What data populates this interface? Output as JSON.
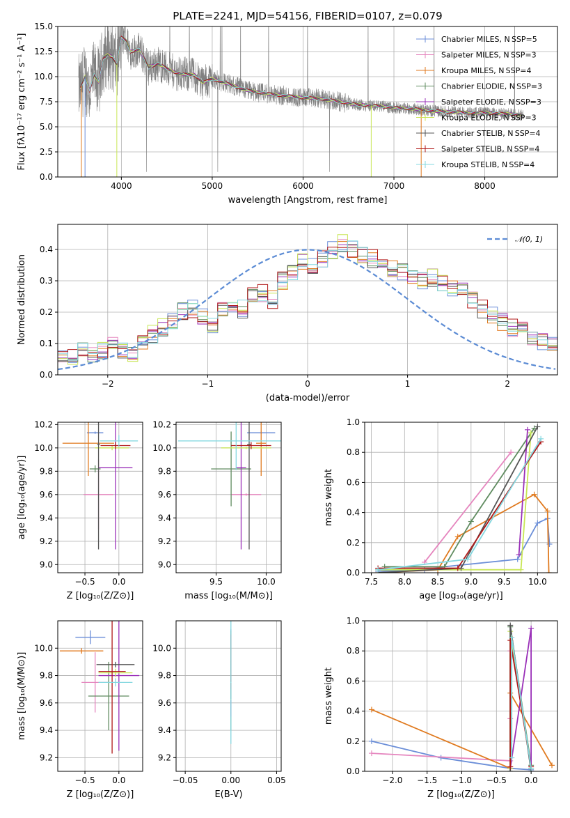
{
  "title": "PLATE=2241, MJD=54156, FIBERID=0107, z=0.079",
  "colors": {
    "spectrum": "#808080",
    "normal_curve": "#5b8bd4",
    "grid": "#b0b0b0",
    "series": [
      "#6b8ed8",
      "#e585be",
      "#e07a1f",
      "#5f8b5f",
      "#9a30b8",
      "#c8e655",
      "#555555",
      "#b01818",
      "#84d8e0"
    ]
  },
  "series_labels": [
    "Chabrier MILES, N SSP=5",
    "Salpeter MILES, N SSP=3",
    "Kroupa MILES, N SSP=4",
    "Chabrier ELODIE, N SSP=3",
    "Salpeter ELODIE, N SSP=3",
    "Kroupa ELODIE, N SSP=3",
    "Chabrier STELIB, N SSP=4",
    "Salpeter STELIB, N SSP=4",
    "Kroupa STELIB, N SSP=4"
  ],
  "chart_data": [
    {
      "id": "spectrum",
      "type": "line",
      "title": "PLATE=2241, MJD=54156, FIBERID=0107, z=0.079",
      "xlabel": "wavelength [Angstrom, rest frame]",
      "ylabel": "Flux [fλ10⁻¹⁷ erg cm⁻² s⁻¹ A⁻¹]",
      "xlim": [
        3300,
        8800
      ],
      "ylim": [
        0,
        15
      ],
      "xticks": [
        4000,
        5000,
        6000,
        7000,
        8000
      ],
      "yticks": [
        0.0,
        2.5,
        5.0,
        7.5,
        10.0,
        12.5,
        15.0
      ],
      "legend": "right",
      "model_continuum": {
        "x": [
          3550,
          3600,
          3650,
          3700,
          3750,
          3800,
          3850,
          3900,
          3950,
          4000,
          4050,
          4100,
          4200,
          4300,
          4400,
          4500,
          4600,
          4700,
          4800,
          4900,
          5000,
          5200,
          5400,
          5600,
          5800,
          6000,
          6200,
          6400,
          6600,
          6800,
          7000,
          7200,
          7400,
          7600,
          7800,
          8000,
          8200,
          8400
        ],
        "y": [
          8.8,
          10.0,
          8.6,
          10.2,
          9.5,
          11.8,
          12.2,
          12.0,
          11.2,
          13.9,
          13.6,
          12.5,
          12.7,
          10.9,
          11.3,
          10.8,
          10.4,
          10.2,
          10.2,
          9.4,
          9.8,
          9.2,
          8.6,
          8.3,
          8.1,
          7.9,
          7.8,
          7.5,
          7.2,
          7.1,
          6.9,
          6.8,
          6.6,
          6.5,
          6.4,
          6.4,
          6.3,
          6.2
        ]
      }
    },
    {
      "id": "residuals",
      "type": "histogram",
      "xlabel": "(data-model)/error",
      "ylabel": "Normed distribution",
      "xlim": [
        -2.5,
        2.5
      ],
      "ylim": [
        0,
        0.48
      ],
      "xticks": [
        -2,
        -1,
        0,
        1,
        2
      ],
      "yticks": [
        0.0,
        0.1,
        0.2,
        0.3,
        0.4
      ],
      "normal_label": "𝒩(0, 1)",
      "legend": "top-right",
      "bins": {
        "start": -2.5,
        "width": 0.1
      },
      "hist_envelope": [
        0.05,
        0.06,
        0.08,
        0.07,
        0.08,
        0.09,
        0.08,
        0.07,
        0.1,
        0.13,
        0.15,
        0.17,
        0.2,
        0.21,
        0.19,
        0.16,
        0.21,
        0.23,
        0.21,
        0.25,
        0.26,
        0.24,
        0.3,
        0.32,
        0.36,
        0.35,
        0.37,
        0.4,
        0.42,
        0.4,
        0.38,
        0.37,
        0.35,
        0.34,
        0.33,
        0.31,
        0.3,
        0.31,
        0.29,
        0.28,
        0.27,
        0.24,
        0.21,
        0.19,
        0.17,
        0.15,
        0.14,
        0.12,
        0.11,
        0.1
      ]
    },
    {
      "id": "age-vs-Z",
      "type": "scatter",
      "xlabel": "Z [log₁₀(Z/Z⊙)]",
      "ylabel": "age  [log₁₀(age/yr)]",
      "xlim": [
        -0.9,
        0.35
      ],
      "ylim": [
        8.93,
        10.22
      ],
      "xticks": [
        -0.5,
        0.0
      ],
      "yticks": [
        9.0,
        9.2,
        9.4,
        9.6,
        9.8,
        10.0,
        10.2
      ],
      "points": [
        {
          "s": 0,
          "x": -0.35,
          "y": 10.13,
          "xerr": 0.12,
          "yerr": 0.01
        },
        {
          "s": 1,
          "x": -0.3,
          "y": 9.6,
          "xerr": 0.22,
          "yerr": 0.3
        },
        {
          "s": 2,
          "x": -0.45,
          "y": 10.04,
          "xerr": 0.38,
          "yerr": 0.28
        },
        {
          "s": 3,
          "x": -0.35,
          "y": 9.82,
          "xerr": 0.08,
          "yerr": 0.03
        },
        {
          "s": 4,
          "x": -0.05,
          "y": 9.83,
          "xerr": 0.25,
          "yerr": 0.7
        },
        {
          "s": 5,
          "x": -0.1,
          "y": 10.0,
          "xerr": 0.25,
          "yerr": 0.02
        },
        {
          "s": 6,
          "x": -0.3,
          "y": 10.03,
          "xerr": 0.02,
          "yerr": 0.9
        },
        {
          "s": 7,
          "x": -0.05,
          "y": 10.02,
          "xerr": 0.22,
          "yerr": 0.03
        },
        {
          "s": 8,
          "x": 0.0,
          "y": 10.06,
          "xerr": 0.28,
          "yerr": 0.05
        }
      ]
    },
    {
      "id": "age-vs-mass",
      "type": "scatter",
      "xlabel": "mass [log₁₀(M/M⊙)]",
      "ylabel": "",
      "xlim": [
        9.1,
        10.15
      ],
      "ylim": [
        8.93,
        10.22
      ],
      "xticks": [
        9.5,
        10.0
      ],
      "yticks": [
        9.0,
        9.2,
        9.4,
        9.6,
        9.8,
        10.0,
        10.2
      ],
      "points": [
        {
          "s": 0,
          "x": 9.95,
          "y": 10.13,
          "xerr": 0.14,
          "yerr": 0.01
        },
        {
          "s": 1,
          "x": 9.8,
          "y": 9.6,
          "xerr": 0.15,
          "yerr": 0.01
        },
        {
          "s": 2,
          "x": 9.95,
          "y": 10.04,
          "xerr": 0.05,
          "yerr": 0.28
        },
        {
          "s": 3,
          "x": 9.65,
          "y": 9.82,
          "xerr": 0.2,
          "yerr": 0.32
        },
        {
          "s": 4,
          "x": 9.75,
          "y": 9.83,
          "xerr": 0.05,
          "yerr": 0.7
        },
        {
          "s": 5,
          "x": 9.8,
          "y": 10.0,
          "xerr": 0.25,
          "yerr": 0.01
        },
        {
          "s": 6,
          "x": 9.83,
          "y": 10.03,
          "xerr": 0.02,
          "yerr": 0.9
        },
        {
          "s": 7,
          "x": 9.85,
          "y": 10.02,
          "xerr": 0.2,
          "yerr": 0.03
        },
        {
          "s": 8,
          "x": 9.7,
          "y": 10.06,
          "xerr": 0.58,
          "yerr": 0.25
        }
      ]
    },
    {
      "id": "weight-vs-age",
      "type": "line",
      "xlabel": "age  [log₁₀(age/yr)]",
      "ylabel": "mass weight",
      "xlim": [
        7.4,
        10.3
      ],
      "ylim": [
        0,
        1.0
      ],
      "xticks": [
        7.5,
        8.0,
        8.5,
        9.0,
        9.5,
        10.0
      ],
      "yticks": [
        0.0,
        0.2,
        0.4,
        0.6,
        0.8,
        1.0
      ],
      "series": [
        {
          "s": 0,
          "x": [
            7.6,
            8.3,
            8.6,
            9.7,
            10.0,
            10.15,
            10.18
          ],
          "y": [
            0.01,
            0.02,
            0.04,
            0.09,
            0.33,
            0.36,
            0.19
          ]
        },
        {
          "s": 1,
          "x": [
            8.3,
            9.6
          ],
          "y": [
            0.07,
            0.8
          ]
        },
        {
          "s": 2,
          "x": [
            7.6,
            8.5,
            8.8,
            9.95,
            10.15,
            10.17
          ],
          "y": [
            0.0,
            0.02,
            0.24,
            0.52,
            0.41,
            0.0
          ]
        },
        {
          "s": 3,
          "x": [
            7.7,
            8.6,
            9.0,
            9.95
          ],
          "y": [
            0.04,
            0.04,
            0.34,
            0.96
          ]
        },
        {
          "s": 4,
          "x": [
            9.72,
            9.85
          ],
          "y": [
            0.12,
            0.95
          ]
        },
        {
          "s": 5,
          "x": [
            7.6,
            9.75,
            9.9
          ],
          "y": [
            0.02,
            0.02,
            0.93
          ]
        },
        {
          "s": 6,
          "x": [
            7.6,
            8.85,
            10.0
          ],
          "y": [
            0.0,
            0.03,
            0.97
          ]
        },
        {
          "s": 7,
          "x": [
            7.6,
            8.8,
            10.05
          ],
          "y": [
            0.03,
            0.03,
            0.87
          ]
        },
        {
          "s": 8,
          "x": [
            7.6,
            8.95,
            10.05
          ],
          "y": [
            0.02,
            0.09,
            0.89
          ]
        }
      ]
    },
    {
      "id": "mass-vs-Z",
      "type": "scatter",
      "xlabel": "Z [log₁₀(Z/Z⊙)]",
      "ylabel": "mass [log₁₀(M/M⊙)]",
      "xlim": [
        -0.9,
        0.35
      ],
      "ylim": [
        9.1,
        10.2
      ],
      "xticks": [
        -0.5,
        0.0
      ],
      "yticks": [
        9.2,
        9.4,
        9.6,
        9.8,
        10.0
      ],
      "points": [
        {
          "s": 0,
          "x": -0.42,
          "y": 10.08,
          "xerr": 0.22,
          "yerr": 0.05
        },
        {
          "s": 1,
          "x": -0.35,
          "y": 9.75,
          "xerr": 0.2,
          "yerr": 0.22
        },
        {
          "s": 2,
          "x": -0.55,
          "y": 9.98,
          "xerr": 0.32,
          "yerr": 0.02
        },
        {
          "s": 3,
          "x": -0.15,
          "y": 9.65,
          "xerr": 0.3,
          "yerr": 0.25
        },
        {
          "s": 4,
          "x": 0.0,
          "y": 9.8,
          "xerr": 0.3,
          "yerr": 0.55
        },
        {
          "s": 5,
          "x": -0.05,
          "y": 9.82,
          "xerr": 0.25,
          "yerr": 0.03
        },
        {
          "s": 6,
          "x": -0.05,
          "y": 9.88,
          "xerr": 0.28,
          "yerr": 0.02
        },
        {
          "s": 7,
          "x": -0.1,
          "y": 9.83,
          "xerr": 0.2,
          "yerr": 0.6
        },
        {
          "s": 8,
          "x": -0.05,
          "y": 9.75,
          "xerr": 0.25,
          "yerr": 0.03
        }
      ]
    },
    {
      "id": "mass-vs-EBV",
      "type": "scatter",
      "xlabel": "E(B-V)",
      "ylabel": "",
      "xlim": [
        -0.06,
        0.055
      ],
      "ylim": [
        9.1,
        10.2
      ],
      "xticks": [
        -0.05,
        0.0,
        0.05
      ],
      "yticks": [
        9.2,
        9.4,
        9.6,
        9.8,
        10.0
      ],
      "points": [
        {
          "s": 0,
          "x": 0.0,
          "y": 10.08,
          "xerr": 0.0005,
          "yerr": 0.06
        },
        {
          "s": 1,
          "x": 0.0,
          "y": 9.75,
          "xerr": 0.0005,
          "yerr": 0.2
        },
        {
          "s": 2,
          "x": 0.0,
          "y": 9.98,
          "xerr": 0.0005,
          "yerr": 0.1
        },
        {
          "s": 3,
          "x": 0.0,
          "y": 9.65,
          "xerr": 0.0005,
          "yerr": 0.25
        },
        {
          "s": 4,
          "x": 0.0,
          "y": 9.8,
          "xerr": 0.0005,
          "yerr": 0.3
        },
        {
          "s": 5,
          "x": 0.0,
          "y": 9.82,
          "xerr": 0.0005,
          "yerr": 0.2
        },
        {
          "s": 6,
          "x": 0.0,
          "y": 9.88,
          "xerr": 0.0005,
          "yerr": 0.25
        },
        {
          "s": 7,
          "x": 0.0,
          "y": 9.9,
          "xerr": 0.0005,
          "yerr": 0.2
        },
        {
          "s": 8,
          "x": 0.0,
          "y": 9.75,
          "xerr": 0.0005,
          "yerr": 0.45
        }
      ]
    },
    {
      "id": "weight-vs-Z",
      "type": "line",
      "xlabel": "Z [log₁₀(Z/Z⊙)]",
      "ylabel": "mass weight",
      "xlim": [
        -2.4,
        0.38
      ],
      "ylim": [
        0,
        1.0
      ],
      "xticks": [
        -2.0,
        -1.5,
        -1.0,
        -0.5,
        0.0
      ],
      "yticks": [
        0.0,
        0.2,
        0.4,
        0.6,
        0.8,
        1.0
      ],
      "series": [
        {
          "s": 0,
          "x": [
            -2.3,
            -1.3,
            -0.3,
            0.0
          ],
          "y": [
            0.2,
            0.09,
            0.02,
            0.01
          ]
        },
        {
          "s": 1,
          "x": [
            -2.3,
            -0.3,
            -0.3,
            -0.3
          ],
          "y": [
            0.12,
            0.07,
            0.8,
            0.35
          ]
        },
        {
          "s": 2,
          "x": [
            -2.3,
            -0.3,
            -0.3,
            0.3
          ],
          "y": [
            0.41,
            0.02,
            0.52,
            0.04
          ]
        },
        {
          "s": 3,
          "x": [
            -0.3,
            -0.3,
            0.0
          ],
          "y": [
            0.0,
            0.96,
            0.04
          ]
        },
        {
          "s": 4,
          "x": [
            -0.3,
            0.0,
            0.0
          ],
          "y": [
            0.02,
            0.95,
            0.0
          ]
        },
        {
          "s": 5,
          "x": [
            -0.3,
            -0.3,
            0.0
          ],
          "y": [
            0.02,
            0.93,
            0.02
          ]
        },
        {
          "s": 6,
          "x": [
            -0.3,
            -0.3,
            0.0
          ],
          "y": [
            0.0,
            0.97,
            0.0
          ]
        },
        {
          "s": 7,
          "x": [
            -0.3,
            -0.3,
            0.0
          ],
          "y": [
            0.03,
            0.87,
            0.03
          ]
        },
        {
          "s": 8,
          "x": [
            -0.28,
            -0.28,
            0.0
          ],
          "y": [
            0.09,
            0.89,
            0.02
          ]
        }
      ]
    }
  ]
}
